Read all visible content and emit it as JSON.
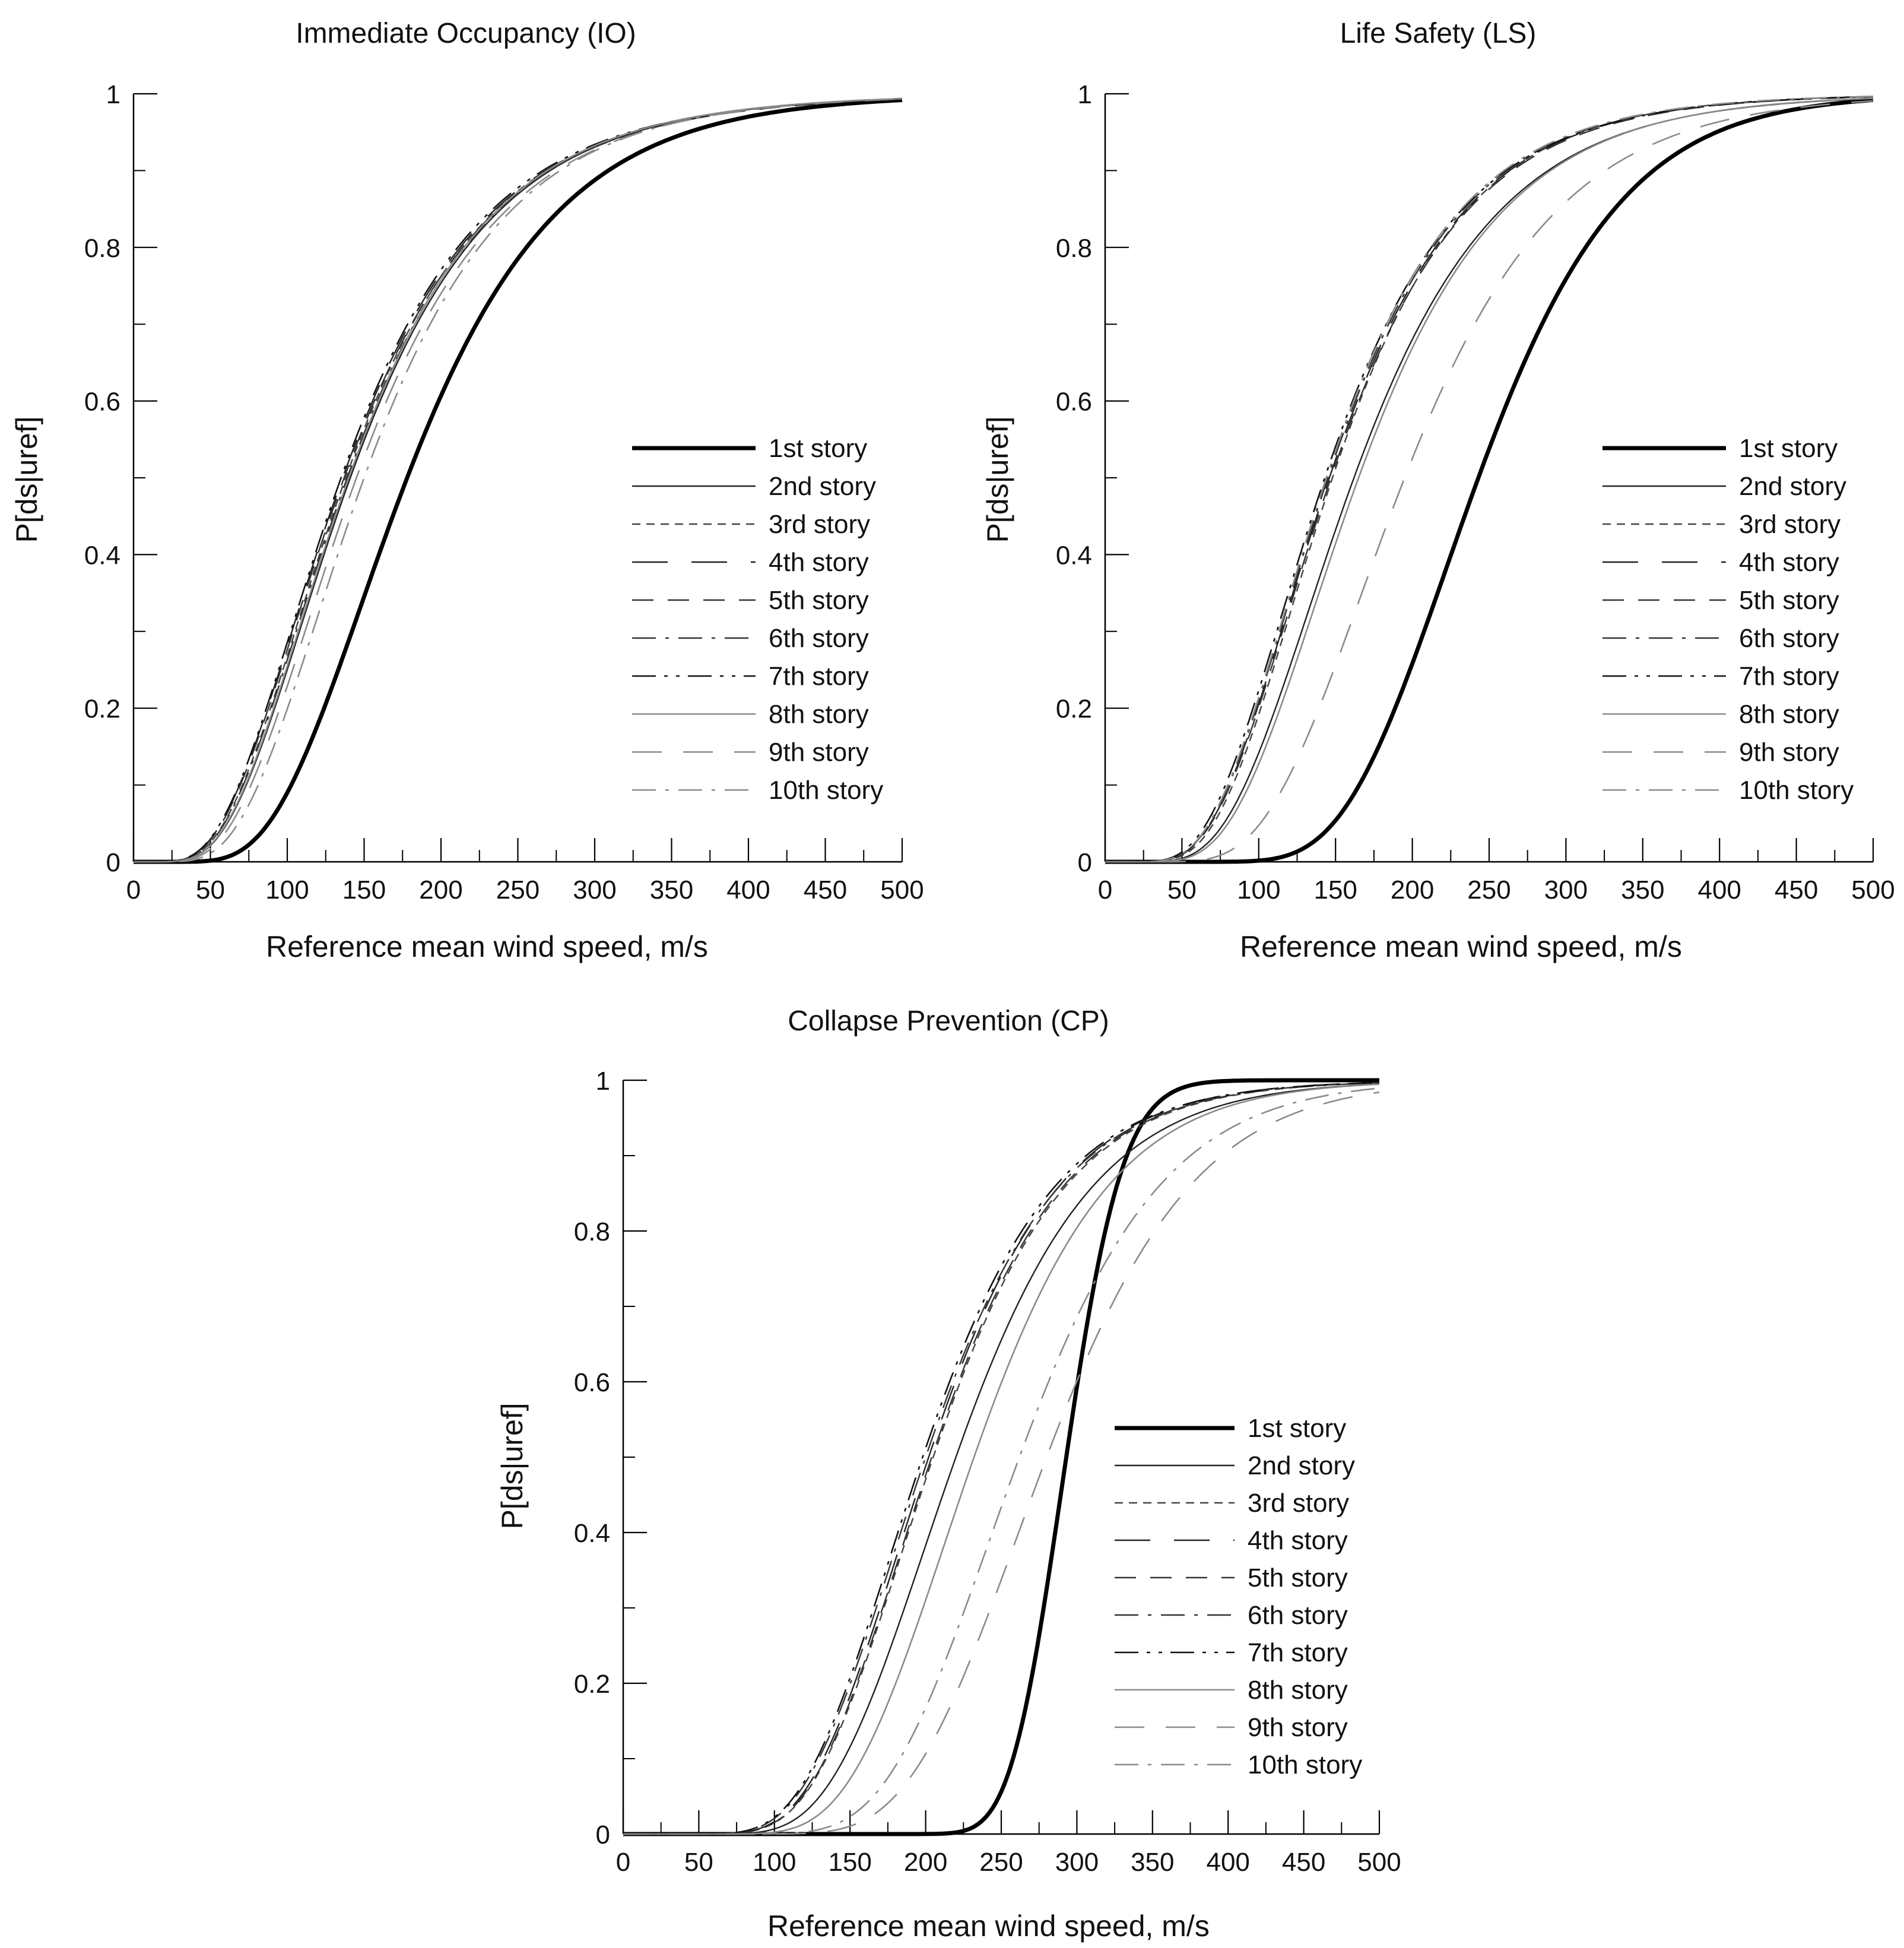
{
  "chart_data": [
    {
      "type": "line",
      "title": "Immediate Occupancy (IO)",
      "xlabel": "Reference mean wind speed, m/s",
      "ylabel": "P[ds|uref]",
      "xlim": [
        0,
        500
      ],
      "ylim": [
        0,
        1
      ],
      "xticks": [
        "0",
        "50",
        "100",
        "150",
        "200",
        "250",
        "300",
        "350",
        "400",
        "450",
        "500"
      ],
      "yticks": [
        "0",
        "0.2",
        "0.4",
        "0.6",
        "0.8",
        "1"
      ],
      "legend_position": "right-center",
      "series": [
        {
          "name": "1st story",
          "median": 178,
          "beta": 0.43,
          "style": "thick"
        },
        {
          "name": "2nd story",
          "median": 141,
          "beta": 0.51,
          "style": "thin"
        },
        {
          "name": "3rd story",
          "median": 138,
          "beta": 0.52,
          "style": "short-dash"
        },
        {
          "name": "4th story",
          "median": 136,
          "beta": 0.53,
          "style": "long-dash"
        },
        {
          "name": "5th story",
          "median": 137,
          "beta": 0.53,
          "style": "medium-dash"
        },
        {
          "name": "6th story",
          "median": 139,
          "beta": 0.52,
          "style": "dash-dot"
        },
        {
          "name": "7th story",
          "median": 135,
          "beta": 0.53,
          "style": "dash-dot-dot"
        },
        {
          "name": "8th story",
          "median": 140,
          "beta": 0.51,
          "style": "thin-gray"
        },
        {
          "name": "9th story",
          "median": 145,
          "beta": 0.5,
          "style": "long-dash-gray"
        },
        {
          "name": "10th story",
          "median": 150,
          "beta": 0.48,
          "style": "dash-dot-gray"
        }
      ]
    },
    {
      "type": "line",
      "title": "Life Safety (LS)",
      "xlabel": "Reference mean wind speed, m/s",
      "ylabel": "P[ds|uref]",
      "xlim": [
        0,
        500
      ],
      "ylim": [
        0,
        1
      ],
      "xticks": [
        "0",
        "50",
        "100",
        "150",
        "200",
        "250",
        "300",
        "350",
        "400",
        "450",
        "500"
      ],
      "yticks": [
        "0",
        "0.2",
        "0.4",
        "0.6",
        "0.8",
        "1"
      ],
      "legend_position": "right-center",
      "series": [
        {
          "name": "1st story",
          "median": 243,
          "beta": 0.3,
          "style": "thick"
        },
        {
          "name": "2nd story",
          "median": 162,
          "beta": 0.45,
          "style": "thin"
        },
        {
          "name": "3rd story",
          "median": 148,
          "beta": 0.45,
          "style": "short-dash"
        },
        {
          "name": "4th story",
          "median": 146,
          "beta": 0.46,
          "style": "long-dash"
        },
        {
          "name": "5th story",
          "median": 147,
          "beta": 0.46,
          "style": "medium-dash"
        },
        {
          "name": "6th story",
          "median": 145,
          "beta": 0.46,
          "style": "dash-dot"
        },
        {
          "name": "7th story",
          "median": 143,
          "beta": 0.47,
          "style": "dash-dot-dot"
        },
        {
          "name": "8th story",
          "median": 165,
          "beta": 0.44,
          "style": "thin-gray"
        },
        {
          "name": "9th story",
          "median": 195,
          "beta": 0.4,
          "style": "long-dash-gray"
        },
        {
          "name": "10th story",
          "median": 144,
          "beta": 0.46,
          "style": "dash-dot-gray"
        }
      ]
    },
    {
      "type": "line",
      "title": "Collapse Prevention (CP)",
      "xlabel": "Reference mean wind speed, m/s",
      "ylabel": "P[ds|uref]",
      "xlim": [
        0,
        500
      ],
      "ylim": [
        0,
        1
      ],
      "xticks": [
        "0",
        "50",
        "100",
        "150",
        "200",
        "250",
        "300",
        "350",
        "400",
        "450",
        "500"
      ],
      "yticks": [
        "0",
        "0.2",
        "0.4",
        "0.6",
        "0.8",
        "1"
      ],
      "legend_position": "right-center",
      "series": [
        {
          "name": "1st story",
          "median": 293,
          "beta": 0.1,
          "style": "thick"
        },
        {
          "name": "2nd story",
          "median": 220,
          "beta": 0.32,
          "style": "thin"
        },
        {
          "name": "3rd story",
          "median": 205,
          "beta": 0.33,
          "style": "short-dash"
        },
        {
          "name": "4th story",
          "median": 202,
          "beta": 0.33,
          "style": "long-dash"
        },
        {
          "name": "5th story",
          "median": 204,
          "beta": 0.33,
          "style": "medium-dash"
        },
        {
          "name": "6th story",
          "median": 200,
          "beta": 0.34,
          "style": "dash-dot"
        },
        {
          "name": "7th story",
          "median": 198,
          "beta": 0.34,
          "style": "dash-dot-dot"
        },
        {
          "name": "8th story",
          "median": 232,
          "beta": 0.3,
          "style": "thin-gray"
        },
        {
          "name": "9th story",
          "median": 280,
          "beta": 0.27,
          "style": "long-dash-gray"
        },
        {
          "name": "10th story",
          "median": 262,
          "beta": 0.28,
          "style": "dash-dot-gray"
        }
      ]
    }
  ]
}
